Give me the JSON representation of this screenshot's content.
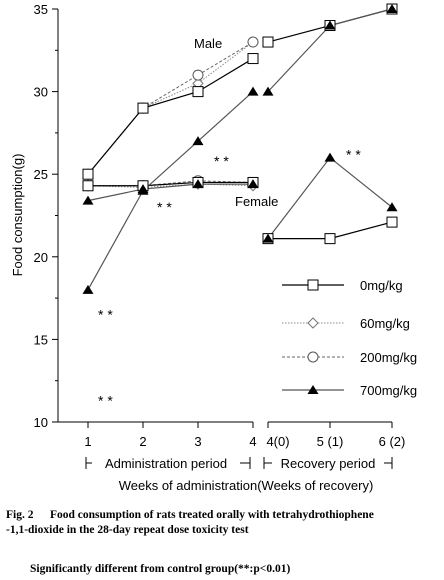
{
  "chart_data": {
    "type": "line",
    "ylabel": "Food consumption(g)",
    "xlabel": "Weeks of administration(Weeks of recovery)",
    "ylim": [
      10,
      35
    ],
    "yticks": [
      "10",
      "15",
      "20",
      "25",
      "30",
      "35"
    ],
    "xticks_admin": [
      "1",
      "2",
      "3",
      "4"
    ],
    "xticks_recovery": [
      "4(0)",
      "5 (1)",
      "6 (2)"
    ],
    "period_labels": {
      "admin": "Administration period",
      "recovery": "Recovery period"
    },
    "group_labels": {
      "male": "Male",
      "female": "Female"
    },
    "significance_marker": "* *",
    "legend": [
      "0mg/kg",
      "60mg/kg",
      "200mg/kg",
      "700mg/kg"
    ],
    "series": [
      {
        "name": "0mg/kg",
        "sex": "male",
        "phase": "admin",
        "x": [
          1,
          2,
          3,
          4
        ],
        "y": [
          25,
          29,
          30,
          32
        ]
      },
      {
        "name": "60mg/kg",
        "sex": "male",
        "phase": "admin",
        "x": [
          1,
          2,
          3,
          4
        ],
        "y": [
          25,
          29,
          30.5,
          33
        ]
      },
      {
        "name": "200mg/kg",
        "sex": "male",
        "phase": "admin",
        "x": [
          1,
          2,
          3,
          4
        ],
        "y": [
          25,
          29,
          31,
          33
        ]
      },
      {
        "name": "700mg/kg",
        "sex": "male",
        "phase": "admin",
        "x": [
          1,
          2,
          3,
          4
        ],
        "y": [
          18,
          24,
          27,
          30
        ]
      },
      {
        "name": "0mg/kg",
        "sex": "female",
        "phase": "admin",
        "x": [
          1,
          2,
          3,
          4
        ],
        "y": [
          24.3,
          24.3,
          24.5,
          24.5
        ]
      },
      {
        "name": "60mg/kg",
        "sex": "female",
        "phase": "admin",
        "x": [
          1,
          2,
          3,
          4
        ],
        "y": [
          24.3,
          24.2,
          24.4,
          24.3
        ]
      },
      {
        "name": "200mg/kg",
        "sex": "female",
        "phase": "admin",
        "x": [
          1,
          2,
          3,
          4
        ],
        "y": [
          24.3,
          24.3,
          24.6,
          24.5
        ]
      },
      {
        "name": "700mg/kg",
        "sex": "female",
        "phase": "admin",
        "x": [
          1,
          2,
          3,
          4
        ],
        "y": [
          23.4,
          24.1,
          24.4,
          24.4
        ]
      },
      {
        "name": "0mg/kg",
        "sex": "male",
        "phase": "recovery",
        "x": [
          4,
          5,
          6
        ],
        "y": [
          33,
          34,
          35
        ]
      },
      {
        "name": "700mg/kg",
        "sex": "male",
        "phase": "recovery",
        "x": [
          4,
          5,
          6
        ],
        "y": [
          30,
          34,
          35
        ]
      },
      {
        "name": "0mg/kg",
        "sex": "female",
        "phase": "recovery",
        "x": [
          4,
          5,
          6
        ],
        "y": [
          21.1,
          21.1,
          22.1
        ]
      },
      {
        "name": "700mg/kg",
        "sex": "female",
        "phase": "recovery",
        "x": [
          4,
          5,
          6
        ],
        "y": [
          21.1,
          26,
          23
        ]
      }
    ],
    "annotations": [
      {
        "text": "* *",
        "x": 3,
        "y": 25.8
      },
      {
        "text": "* *",
        "x": 2,
        "y": 23
      },
      {
        "text": "* *",
        "x": 1,
        "y": 16.5
      },
      {
        "text": "* *",
        "x": 1,
        "y": 11.3
      },
      {
        "text": "* *",
        "x": 5,
        "y": 26.2
      }
    ]
  },
  "caption": {
    "figure_number": "Fig. 2",
    "line1": "Food consumption of rats treated orally with tetrahydrothiophene",
    "line2": "-1,1-dioxide in the 28-day repeat dose toxicity test",
    "line3": "Significantly different from control group(**:p<0.01)"
  }
}
